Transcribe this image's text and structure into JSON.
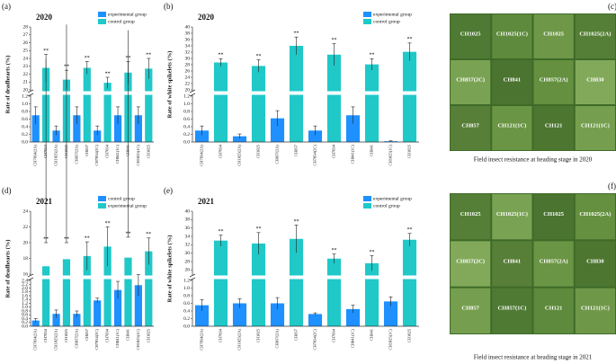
{
  "chart_data": [
    {
      "type": "bar",
      "panel": "(a)",
      "title": "2020",
      "ylabel": "Rate of deadhearts (%)",
      "categories": [
        "CH7034(2A)",
        "CH7034",
        "CH1025(2A)",
        "CH1025",
        "CH857(2A)",
        "CH857",
        "CH7034(2C)",
        "CH7034",
        "CH841(1C)",
        "CH841",
        "CH1025(1C)",
        "CH1025"
      ],
      "series": [
        {
          "name": "experimental group",
          "color": "#1e90ff",
          "values": [
            0.7,
            null,
            0.3,
            null,
            0.7,
            null,
            0.3,
            null,
            0.7,
            null,
            0.7,
            null
          ],
          "errors": [
            0.22,
            null,
            0.12,
            null,
            0.22,
            null,
            0.12,
            null,
            0.22,
            null,
            0.22,
            null
          ]
        },
        {
          "name": "control group",
          "color": "#20c8c8",
          "values": [
            null,
            22.8,
            null,
            21.3,
            null,
            22.8,
            null,
            20.9,
            null,
            22.2,
            null,
            22.7
          ],
          "errors": [
            null,
            1.7,
            null,
            1.2,
            null,
            0.8,
            null,
            0.7,
            null,
            1.4,
            null,
            1.3
          ],
          "annotations": [
            null,
            "**",
            null,
            "**",
            null,
            "**",
            null,
            "**",
            null,
            "**",
            null,
            "**"
          ]
        }
      ],
      "ylim_lower": [
        0,
        1.2
      ],
      "yticks_lower": [
        {
          "value": 0,
          "label": "0.0"
        },
        0.2,
        0.4,
        0.6,
        0.8,
        {
          "value": 1,
          "label": "1.0"
        },
        1.2
      ],
      "ylim_upper": [
        20,
        28
      ],
      "yticks_upper": [
        20,
        21,
        22,
        23,
        24,
        25,
        26,
        27,
        28
      ]
    },
    {
      "type": "bar",
      "panel": "(b)",
      "title": "2020",
      "ylabel": "Rate of white spikelets (%)",
      "categories": [
        "CH7034(2A)",
        "CH7034",
        "CH1025(2A)",
        "CH1025",
        "CH857(2A)",
        "CH857",
        "CH7034(2C)",
        "CH7034",
        "CH841(1C)",
        "CH841",
        "CH1025(1C)",
        "CH1025"
      ],
      "series": [
        {
          "name": "experimental group",
          "color": "#1e90ff",
          "values": [
            0.3,
            null,
            0.15,
            null,
            0.62,
            null,
            0.3,
            null,
            0.7,
            null,
            0.02,
            null
          ],
          "errors": [
            0.12,
            null,
            0.06,
            null,
            0.2,
            null,
            0.12,
            null,
            0.22,
            null,
            0.01,
            null
          ]
        },
        {
          "name": "control group",
          "color": "#20c8c8",
          "values": [
            null,
            28.7,
            null,
            27.6,
            null,
            34,
            null,
            31.2,
            null,
            28.1,
            null,
            32.1
          ],
          "errors": [
            null,
            1.2,
            null,
            2,
            null,
            2.8,
            null,
            3.5,
            null,
            1.8,
            null,
            2.8
          ],
          "annotations": [
            null,
            "**",
            null,
            "**",
            null,
            "**",
            null,
            "**",
            null,
            "**",
            null,
            "**"
          ]
        }
      ],
      "ylim_lower": [
        0,
        1.2
      ],
      "yticks_lower": [
        {
          "value": 0,
          "label": "0.0"
        },
        0.2,
        0.4,
        0.6,
        0.8,
        {
          "value": 1,
          "label": "1.0"
        },
        1.2
      ],
      "ylim_upper": [
        20,
        40
      ],
      "yticks_upper": [
        20,
        22,
        24,
        26,
        28,
        30,
        32,
        34,
        36,
        38,
        40
      ]
    },
    {
      "type": "bar",
      "panel": "(d)",
      "title": "2021",
      "ylabel": "Rate of deadhearts (%)",
      "categories": [
        "CH7034(2A)",
        "CH7034",
        "CH1025(2A)",
        "CH1025",
        "CH857(2A)",
        "CH857",
        "CH7034(2C)",
        "CH7034",
        "CH841(1C)",
        "CH841",
        "CH1025(1C)",
        "CH1025"
      ],
      "series": [
        {
          "name": "control group",
          "color": "#1e90ff",
          "values": [
            0.3,
            null,
            0.65,
            null,
            0.65,
            null,
            1.35,
            null,
            1.9,
            null,
            2.15,
            null
          ],
          "errors": [
            0.1,
            null,
            0.2,
            null,
            0.15,
            null,
            0.12,
            null,
            0.45,
            null,
            0.55,
            null
          ]
        },
        {
          "name": "experimental group",
          "color": "#20c8c8",
          "values": [
            null,
            17,
            null,
            17.9,
            null,
            18.3,
            null,
            19.5,
            null,
            18.1,
            null,
            18.9
          ],
          "errors": [
            null,
            3,
            null,
            2.1,
            null,
            1.8,
            null,
            2.5,
            null,
            2.6,
            null,
            1.7
          ],
          "annotations": [
            null,
            "**",
            null,
            "**",
            null,
            "**",
            null,
            "**",
            null,
            "**",
            null,
            "**"
          ]
        }
      ],
      "ylim_lower": [
        0,
        2.4
      ],
      "yticks_lower": [
        {
          "value": 0,
          "label": "0.0"
        },
        0.2,
        0.4,
        0.6,
        0.8,
        {
          "value": 1,
          "label": "1.0"
        },
        1.2,
        1.4,
        1.6,
        1.8,
        {
          "value": 2,
          "label": "2.0"
        },
        2.2,
        2.4
      ],
      "ylim_upper": [
        16,
        24
      ],
      "yticks_upper": [
        16,
        18,
        20,
        22,
        24
      ]
    },
    {
      "type": "bar",
      "panel": "(e)",
      "title": "2021",
      "ylabel": "Rate of white spikelets (%)",
      "categories": [
        "CH7034(2A)",
        "CH7034",
        "CH1025(2A)",
        "CH1025",
        "CH857(2A)",
        "CH857",
        "CH7034(2C)",
        "CH7034",
        "CH841(1C)",
        "CH841",
        "CH1025(1C)",
        "CH1025"
      ],
      "series": [
        {
          "name": "experimental group",
          "color": "#1e90ff",
          "values": [
            0.55,
            null,
            0.6,
            null,
            0.6,
            null,
            0.32,
            null,
            0.45,
            null,
            0.65,
            null
          ],
          "errors": [
            0.15,
            null,
            0.12,
            null,
            0.15,
            null,
            0.03,
            null,
            0.1,
            null,
            0.12,
            null
          ]
        },
        {
          "name": "control group",
          "color": "#20c8c8",
          "values": [
            null,
            33,
            null,
            32.3,
            null,
            33.4,
            null,
            28.7,
            null,
            27.6,
            null,
            33.2
          ],
          "errors": [
            null,
            1.3,
            null,
            2.6,
            null,
            3.3,
            null,
            1.1,
            null,
            1.8,
            null,
            1.5
          ],
          "annotations": [
            null,
            "**",
            null,
            "**",
            null,
            "**",
            null,
            "**",
            null,
            "**",
            null,
            "**"
          ]
        }
      ],
      "ylim_lower": [
        0,
        1.2
      ],
      "yticks_lower": [
        {
          "value": 0,
          "label": "0.0"
        },
        0.2,
        0.4,
        0.6,
        0.8,
        {
          "value": 1,
          "label": "1.0"
        },
        1.2
      ],
      "ylim_upper": [
        25,
        40
      ],
      "yticks_upper": [
        26,
        28,
        30,
        32,
        34,
        36,
        38,
        40
      ]
    }
  ],
  "photos": [
    {
      "panel": "(c)",
      "caption": "Field insect resistance at heading stage in 2020",
      "labels": [
        "CH1025",
        "CH1025(1C)",
        "CH1025",
        "CH1025(2A)",
        "CH857(2C)",
        "CH841",
        "CH857(2A)",
        "CH830",
        "CH857",
        "CH121(1C)",
        "CH121",
        "CH121(1C)"
      ]
    },
    {
      "panel": "(f)",
      "caption": "Field insect resistance at heading stage in 2021",
      "labels": [
        "CH1025",
        "CH1025(1C)",
        "CH1025",
        "CH1025(2A)",
        "CH857(2C)",
        "CH841",
        "CH857(2A)",
        "CH830",
        "CH857",
        "CH857(1C)",
        "CH121",
        "CH121(1C)"
      ]
    }
  ]
}
